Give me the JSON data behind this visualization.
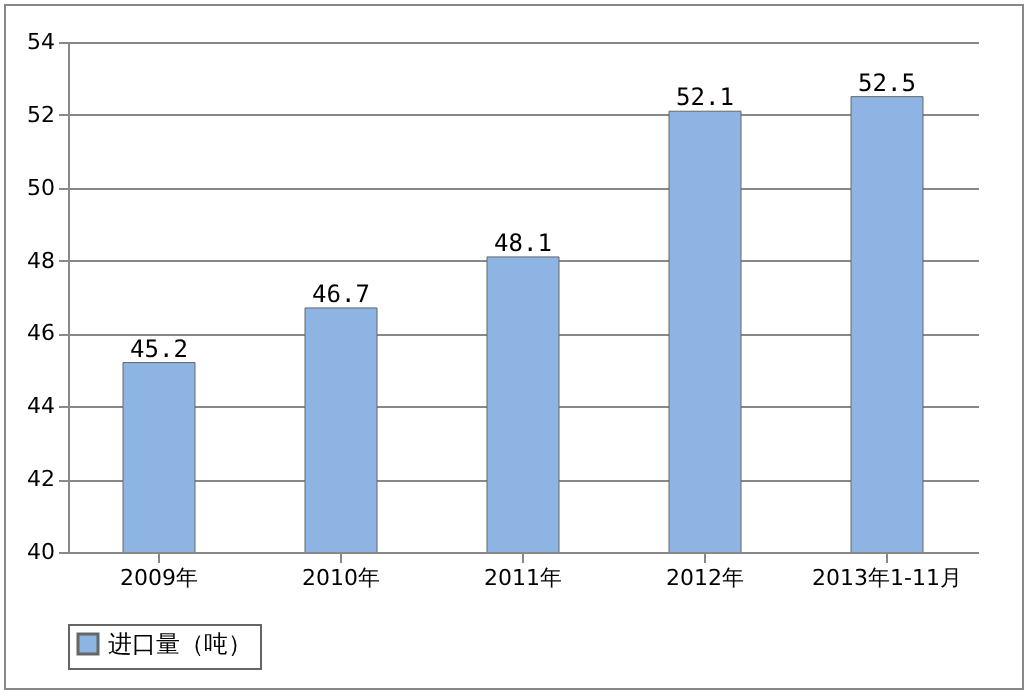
{
  "chart_data": {
    "type": "bar",
    "categories": [
      "2009年",
      "2010年",
      "2011年",
      "2012年",
      "2013年1-11月"
    ],
    "series": [
      {
        "name": "进口量（吨）",
        "color": "#8db4e2",
        "values": [
          45.2,
          46.7,
          48.1,
          52.1,
          52.5
        ]
      }
    ],
    "ylim": [
      40,
      54
    ],
    "yticks": [
      40,
      42,
      44,
      46,
      48,
      50,
      52,
      54
    ],
    "grid": "y",
    "legend": "bottom",
    "data_labels": true
  }
}
